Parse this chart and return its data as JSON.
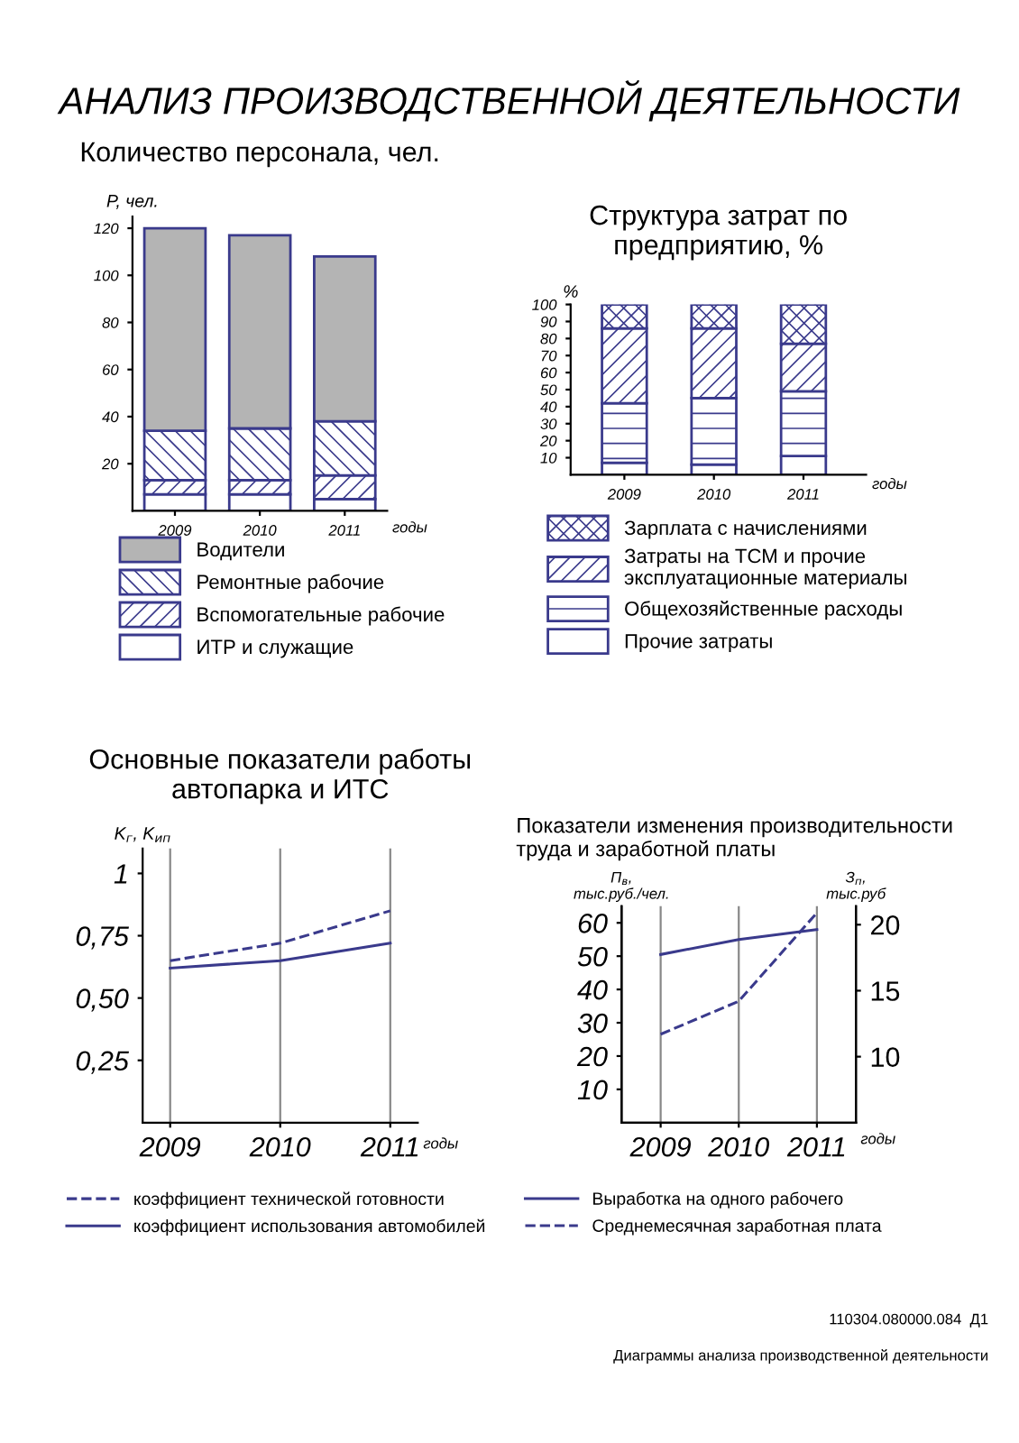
{
  "chart_data": [
    {
      "type": "bar",
      "title": "Количество персонала, чел.",
      "ylabel": "P, чел.",
      "xlabel": "годы",
      "stacked": true,
      "legend": "bottom",
      "annotations": [
        "АНАЛИЗ ПРОИЗВОДСТВЕННОЙ ДЕЯТЕЛЬНОСТИ",
        "110304.080000.084  Д1",
        "Диаграммы анализа производственной деятельности"
      ],
      "categories": [
        "2009",
        "2010",
        "2011"
      ],
      "ylim": [
        0,
        125
      ],
      "yticks": [
        20,
        40,
        60,
        80,
        100,
        120
      ],
      "series": [
        {
          "name": "ИТР и служащие",
          "color": "#ffffff",
          "values": [
            7,
            7,
            5
          ]
        },
        {
          "name": "Вспомогательные рабочие",
          "color": "#3a3a8c",
          "values": [
            6,
            6,
            10
          ]
        },
        {
          "name": "Ремонтные рабочие",
          "color": "#3a3a8c",
          "values": [
            21,
            22,
            23
          ]
        },
        {
          "name": "Водители",
          "color": "#b4b4b4",
          "values": [
            86,
            82,
            70
          ]
        }
      ]
    },
    {
      "type": "bar",
      "title": "Структура затрат по\nпредприятию, %",
      "ylabel": "%",
      "xlabel": "годы",
      "stacked": true,
      "legend": "bottom",
      "categories": [
        "2009",
        "2010",
        "2011"
      ],
      "ylim": [
        0,
        100
      ],
      "yticks": [
        10,
        20,
        30,
        40,
        50,
        60,
        70,
        80,
        90,
        100
      ],
      "series": [
        {
          "name": "Прочие затраты",
          "color": "#ffffff",
          "values": [
            7,
            6,
            11
          ]
        },
        {
          "name": "Общехозяйственные расходы",
          "color": "#3a3a8c",
          "values": [
            35,
            39,
            38
          ]
        },
        {
          "name": "Затраты на ТСМ и прочие\nэксплуатационные материалы",
          "color": "#3a3a8c",
          "values": [
            44,
            41,
            28
          ]
        },
        {
          "name": "Зарплата с начислениями",
          "color": "#3a3a8c",
          "values": [
            14,
            14,
            23
          ]
        }
      ]
    },
    {
      "type": "line",
      "title": "Основные показатели работы\nавтопарка и ИТС",
      "ylabel": "K$_{г}$, K$_{ип}$",
      "xlabel": "годы",
      "legend": "bottom",
      "grid": "x",
      "x": [
        2009,
        2010,
        2011
      ],
      "xlim": [
        2008.75,
        2011.25
      ],
      "xticks": [
        2009,
        2010,
        2011
      ],
      "ylim": [
        0,
        1.1
      ],
      "yticks": [
        {
          "value": 0.25,
          "label": "0,25"
        },
        {
          "value": 0.5,
          "label": "0,50"
        },
        {
          "value": 0.75,
          "label": "0,75"
        },
        1
      ],
      "series": [
        {
          "name": "коэффициент технической готовности",
          "color": "#3a3a8c",
          "line_style": "dashed",
          "values": [
            0.65,
            0.72,
            0.85
          ]
        },
        {
          "name": "коэффициент использования автомобилей",
          "color": "#3a3a8c",
          "line_style": "solid",
          "values": [
            0.62,
            0.65,
            0.72
          ]
        }
      ]
    },
    {
      "type": "line",
      "title": "Показатели изменения производительности\nтруда и заработной платы",
      "ylabel": "П$_{в}$,\nтыс.руб./чел.",
      "y2label": "З$_{п}$,\nтыс.руб",
      "xlabel": "годы",
      "legend": "bottom",
      "grid": "x",
      "x": [
        2009,
        2010,
        2011
      ],
      "xlim": [
        2008.5,
        2011.5
      ],
      "xticks": [
        2009,
        2010,
        2011
      ],
      "ylim": [
        0,
        65
      ],
      "yticks": [
        10,
        20,
        30,
        40,
        50,
        60
      ],
      "y2lim": [
        5,
        21.4
      ],
      "y2ticks": [
        10,
        15,
        20
      ],
      "series": [
        {
          "name": "Выработка на одного рабочего",
          "color": "#3a3a8c",
          "line_style": "solid",
          "values": [
            50.5,
            55,
            58
          ]
        },
        {
          "name": "Среднемесячная заработная плата",
          "color": "#3a3a8c",
          "line_style": "dashed",
          "axis": "y2",
          "values": [
            11.7,
            14.2,
            20.9
          ]
        }
      ]
    }
  ]
}
